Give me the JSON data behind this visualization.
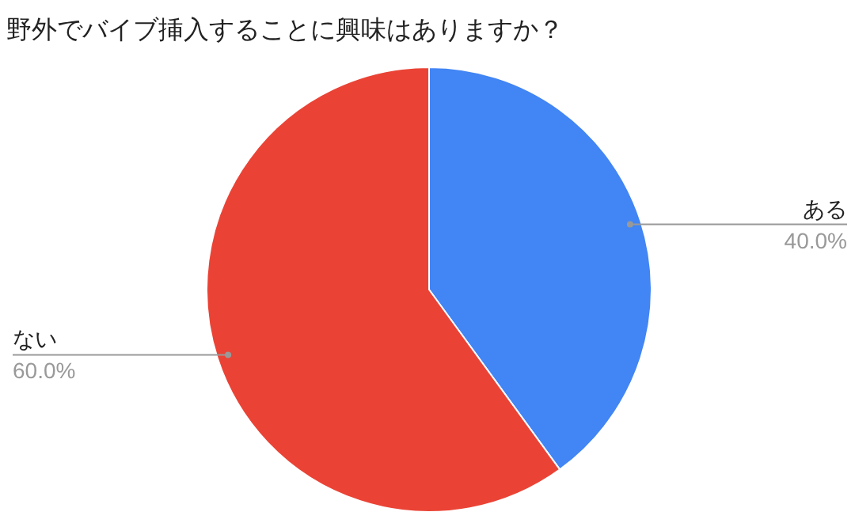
{
  "chart_data": {
    "type": "pie",
    "title": "野外でバイブ挿入することに興味はありますか？",
    "categories": [
      "ある",
      "ない"
    ],
    "values": [
      40,
      60
    ],
    "colors": [
      "#4285f4",
      "#ea4335"
    ],
    "value_labels": [
      "40.0%",
      "60.0%"
    ]
  }
}
